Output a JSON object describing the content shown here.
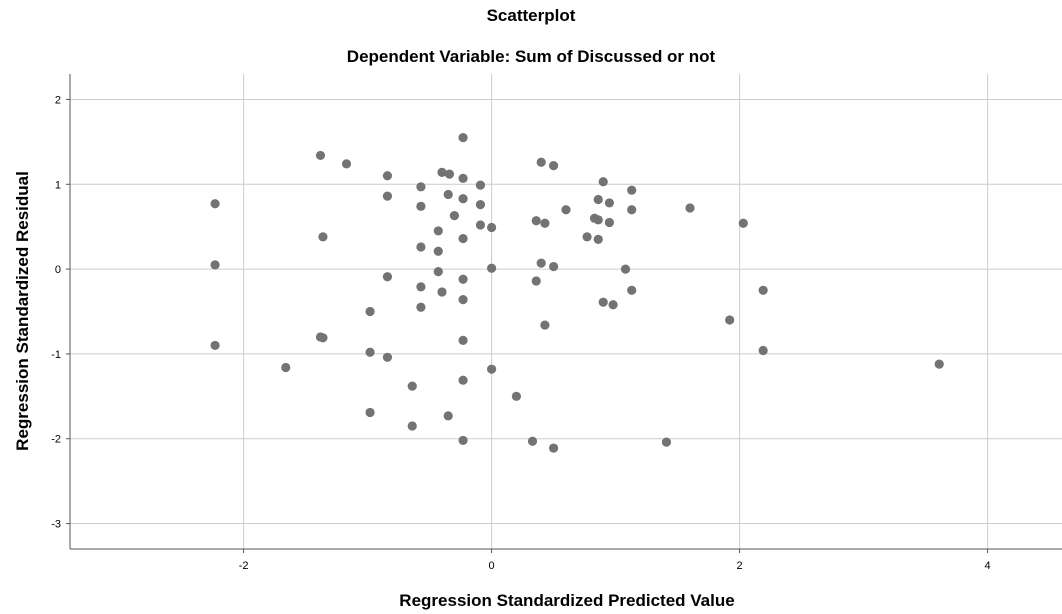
{
  "chart_data": {
    "type": "scatter",
    "title": "Scatterplot",
    "subtitle": "Dependent Variable: Sum of Discussed or not",
    "xlabel": "Regression Standardized Predicted Value",
    "ylabel": "Regression Standardized Residual",
    "xlim": [
      -3.4,
      4.6
    ],
    "ylim": [
      -3.3,
      2.3
    ],
    "xticks": [
      -2,
      0,
      2,
      4
    ],
    "yticks": [
      2,
      1,
      0,
      -1,
      -2,
      -3
    ],
    "grid": true,
    "point_color": "#737373",
    "grid_color": "#cccccc",
    "points": [
      {
        "x": -2.23,
        "y": 0.77
      },
      {
        "x": -2.23,
        "y": 0.05
      },
      {
        "x": -2.23,
        "y": -0.9
      },
      {
        "x": -1.66,
        "y": -1.16
      },
      {
        "x": -1.38,
        "y": 1.34
      },
      {
        "x": -1.36,
        "y": 0.38
      },
      {
        "x": -1.38,
        "y": -0.8
      },
      {
        "x": -1.36,
        "y": -0.81
      },
      {
        "x": -1.17,
        "y": 1.24
      },
      {
        "x": -0.98,
        "y": -0.5
      },
      {
        "x": -0.98,
        "y": -0.98
      },
      {
        "x": -0.98,
        "y": -1.69
      },
      {
        "x": -0.84,
        "y": 1.1
      },
      {
        "x": -0.84,
        "y": 0.86
      },
      {
        "x": -0.84,
        "y": -0.09
      },
      {
        "x": -0.84,
        "y": -1.04
      },
      {
        "x": -0.64,
        "y": -1.38
      },
      {
        "x": -0.64,
        "y": -1.85
      },
      {
        "x": -0.57,
        "y": 0.97
      },
      {
        "x": -0.57,
        "y": 0.74
      },
      {
        "x": -0.57,
        "y": 0.26
      },
      {
        "x": -0.57,
        "y": -0.21
      },
      {
        "x": -0.57,
        "y": -0.45
      },
      {
        "x": -0.43,
        "y": 0.45
      },
      {
        "x": -0.43,
        "y": 0.21
      },
      {
        "x": -0.43,
        "y": -0.03
      },
      {
        "x": -0.4,
        "y": -0.27
      },
      {
        "x": -0.4,
        "y": 1.14
      },
      {
        "x": -0.34,
        "y": 1.12
      },
      {
        "x": -0.35,
        "y": 0.88
      },
      {
        "x": -0.35,
        "y": -1.73
      },
      {
        "x": -0.3,
        "y": 0.63
      },
      {
        "x": -0.23,
        "y": 1.55
      },
      {
        "x": -0.23,
        "y": 1.07
      },
      {
        "x": -0.23,
        "y": 0.83
      },
      {
        "x": -0.23,
        "y": 0.36
      },
      {
        "x": -0.23,
        "y": -0.12
      },
      {
        "x": -0.23,
        "y": -0.36
      },
      {
        "x": -0.23,
        "y": -0.84
      },
      {
        "x": -0.23,
        "y": -1.31
      },
      {
        "x": -0.23,
        "y": -2.02
      },
      {
        "x": -0.09,
        "y": 0.99
      },
      {
        "x": -0.09,
        "y": 0.76
      },
      {
        "x": -0.09,
        "y": 0.52
      },
      {
        "x": 0.0,
        "y": 0.49
      },
      {
        "x": 0.0,
        "y": 0.01
      },
      {
        "x": 0.0,
        "y": -1.18
      },
      {
        "x": 0.2,
        "y": -1.5
      },
      {
        "x": 0.33,
        "y": -2.03
      },
      {
        "x": 0.36,
        "y": 0.57
      },
      {
        "x": 0.36,
        "y": -0.14
      },
      {
        "x": 0.4,
        "y": 1.26
      },
      {
        "x": 0.4,
        "y": 0.07
      },
      {
        "x": 0.43,
        "y": 0.54
      },
      {
        "x": 0.43,
        "y": -0.66
      },
      {
        "x": 0.5,
        "y": 1.22
      },
      {
        "x": 0.5,
        "y": 0.03
      },
      {
        "x": 0.5,
        "y": -2.11
      },
      {
        "x": 0.6,
        "y": 0.7
      },
      {
        "x": 0.77,
        "y": 0.38
      },
      {
        "x": 0.83,
        "y": 0.6
      },
      {
        "x": 0.86,
        "y": 0.82
      },
      {
        "x": 0.86,
        "y": 0.58
      },
      {
        "x": 0.86,
        "y": 0.35
      },
      {
        "x": 0.9,
        "y": 1.03
      },
      {
        "x": 0.9,
        "y": -0.39
      },
      {
        "x": 0.95,
        "y": 0.78
      },
      {
        "x": 0.95,
        "y": 0.55
      },
      {
        "x": 0.98,
        "y": -0.42
      },
      {
        "x": 1.08,
        "y": 0.0
      },
      {
        "x": 1.13,
        "y": 0.93
      },
      {
        "x": 1.13,
        "y": 0.7
      },
      {
        "x": 1.13,
        "y": -0.25
      },
      {
        "x": 1.41,
        "y": -2.04
      },
      {
        "x": 1.6,
        "y": 0.72
      },
      {
        "x": 1.92,
        "y": -0.6
      },
      {
        "x": 2.03,
        "y": 0.54
      },
      {
        "x": 2.19,
        "y": -0.25
      },
      {
        "x": 2.19,
        "y": -0.96
      },
      {
        "x": 3.61,
        "y": -1.12
      }
    ]
  }
}
